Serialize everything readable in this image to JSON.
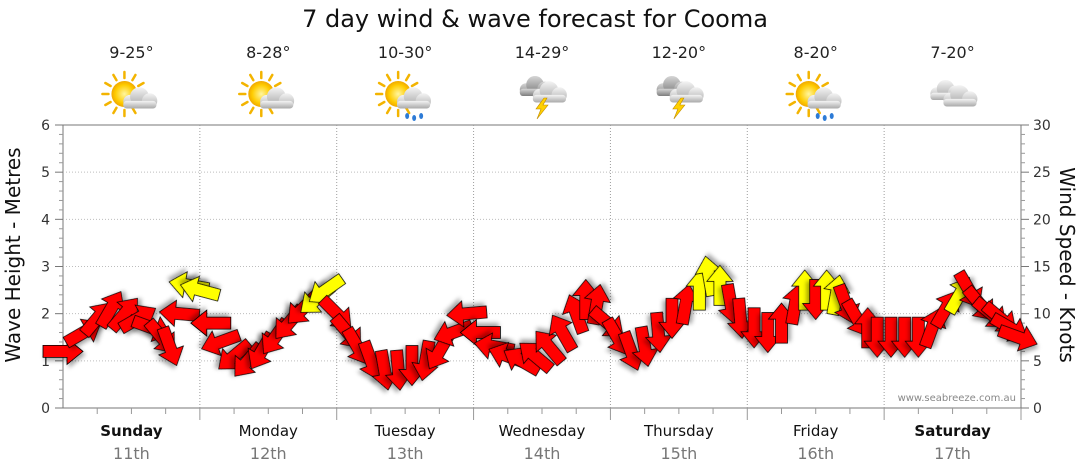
{
  "chart_data": {
    "type": "line",
    "title": "7 day wind & wave forecast for Cooma",
    "ylabel_left": "Wave Height - Metres",
    "ylabel_right": "Wind Speed - Knots",
    "ylim_left": [
      0,
      6
    ],
    "ylim_right": [
      0,
      30
    ],
    "yticks_left": [
      "0",
      "1",
      "2",
      "3",
      "4",
      "5",
      "6"
    ],
    "yticks_right": [
      "0",
      "5",
      "10",
      "15",
      "20",
      "25",
      "30"
    ],
    "grid": true,
    "credit": "www.seabreeze.com.au",
    "days": [
      {
        "name": "Sunday",
        "date": "11th",
        "temps": "9-25°",
        "weather": "partly-cloudy",
        "bold": true
      },
      {
        "name": "Monday",
        "date": "12th",
        "temps": "8-28°",
        "weather": "partly-cloudy",
        "bold": false
      },
      {
        "name": "Tuesday",
        "date": "13th",
        "temps": "10-30°",
        "weather": "shower",
        "bold": false
      },
      {
        "name": "Wednesday",
        "date": "14th",
        "temps": "14-29°",
        "weather": "storm",
        "bold": false
      },
      {
        "name": "Thursday",
        "date": "15th",
        "temps": "12-20°",
        "weather": "storm",
        "bold": false
      },
      {
        "name": "Friday",
        "date": "16th",
        "temps": "8-20°",
        "weather": "shower",
        "bold": false
      },
      {
        "name": "Saturday",
        "date": "17th",
        "temps": "7-20°",
        "weather": "cloudy",
        "bold": true
      }
    ],
    "series": [
      {
        "unit": "knots",
        "description_colors": {
          "strong": "#ff0000",
          "light": "#ffff00"
        },
        "points": [
          [
            0.0,
            6,
            90,
            "r"
          ],
          [
            0.15,
            8,
            60,
            "r"
          ],
          [
            0.25,
            9.5,
            40,
            "r"
          ],
          [
            0.35,
            10.5,
            30,
            "r"
          ],
          [
            0.45,
            10,
            40,
            "r"
          ],
          [
            0.55,
            9.5,
            60,
            "r"
          ],
          [
            0.65,
            8.5,
            110,
            "r"
          ],
          [
            0.72,
            7.5,
            140,
            "r"
          ],
          [
            0.78,
            6.5,
            160,
            "r"
          ],
          [
            0.85,
            10,
            275,
            "r"
          ],
          [
            0.92,
            13,
            280,
            "y"
          ],
          [
            1.0,
            12.5,
            285,
            "y"
          ],
          [
            1.08,
            9,
            270,
            "r"
          ],
          [
            1.15,
            7,
            250,
            "r"
          ],
          [
            1.25,
            5.5,
            230,
            "r"
          ],
          [
            1.35,
            5,
            220,
            "r"
          ],
          [
            1.45,
            6,
            210,
            "r"
          ],
          [
            1.55,
            7.5,
            215,
            "r"
          ],
          [
            1.65,
            9,
            220,
            "r"
          ],
          [
            1.75,
            10.5,
            225,
            "r"
          ],
          [
            1.85,
            11.5,
            230,
            "y"
          ],
          [
            1.92,
            12.5,
            235,
            "y"
          ],
          [
            2.0,
            10,
            135,
            "r"
          ],
          [
            2.08,
            8,
            140,
            "r"
          ],
          [
            2.15,
            6.5,
            150,
            "r"
          ],
          [
            2.25,
            5,
            160,
            "r"
          ],
          [
            2.35,
            4,
            170,
            "r"
          ],
          [
            2.45,
            4,
            175,
            "r"
          ],
          [
            2.55,
            4.5,
            180,
            "r"
          ],
          [
            2.65,
            5,
            190,
            "r"
          ],
          [
            2.75,
            6,
            210,
            "r"
          ],
          [
            2.85,
            8,
            250,
            "r"
          ],
          [
            2.95,
            10,
            265,
            "r"
          ],
          [
            3.05,
            8,
            270,
            "r"
          ],
          [
            3.15,
            6.5,
            280,
            "r"
          ],
          [
            3.25,
            5.5,
            290,
            "r"
          ],
          [
            3.35,
            5,
            300,
            "r"
          ],
          [
            3.45,
            5.5,
            310,
            "r"
          ],
          [
            3.55,
            6.5,
            320,
            "r"
          ],
          [
            3.65,
            8,
            330,
            "r"
          ],
          [
            3.75,
            10,
            340,
            "r"
          ],
          [
            3.82,
            11.5,
            0,
            "r"
          ],
          [
            3.9,
            11,
            10,
            "r"
          ],
          [
            3.98,
            9,
            130,
            "r"
          ],
          [
            4.05,
            7.5,
            150,
            "r"
          ],
          [
            4.15,
            6,
            160,
            "r"
          ],
          [
            4.25,
            6.5,
            170,
            "r"
          ],
          [
            4.35,
            8,
            175,
            "r"
          ],
          [
            4.45,
            9.5,
            180,
            "r"
          ],
          [
            4.55,
            11,
            10,
            "r"
          ],
          [
            4.65,
            12.5,
            0,
            "y"
          ],
          [
            4.72,
            14,
            350,
            "y"
          ],
          [
            4.8,
            13,
            0,
            "y"
          ],
          [
            4.88,
            11,
            170,
            "r"
          ],
          [
            4.95,
            9.5,
            175,
            "r"
          ],
          [
            5.05,
            8.5,
            180,
            "r"
          ],
          [
            5.15,
            8,
            180,
            "r"
          ],
          [
            5.25,
            9,
            0,
            "r"
          ],
          [
            5.35,
            11,
            10,
            "r"
          ],
          [
            5.42,
            12.5,
            0,
            "y"
          ],
          [
            5.5,
            11.5,
            180,
            "r"
          ],
          [
            5.58,
            12.5,
            0,
            "y"
          ],
          [
            5.65,
            12,
            10,
            "y"
          ],
          [
            5.72,
            11,
            160,
            "r"
          ],
          [
            5.8,
            9.5,
            150,
            "r"
          ],
          [
            5.88,
            8.5,
            0,
            "r"
          ],
          [
            5.95,
            7.5,
            180,
            "r"
          ],
          [
            6.05,
            7.5,
            180,
            "r"
          ],
          [
            6.15,
            7.5,
            180,
            "r"
          ],
          [
            6.25,
            7.5,
            180,
            "r"
          ],
          [
            6.35,
            8.5,
            20,
            "r"
          ],
          [
            6.45,
            10.5,
            30,
            "r"
          ],
          [
            6.55,
            12,
            30,
            "y"
          ],
          [
            6.62,
            12.5,
            150,
            "r"
          ],
          [
            6.7,
            11,
            140,
            "r"
          ],
          [
            6.78,
            10,
            130,
            "r"
          ],
          [
            6.85,
            9.5,
            130,
            "r"
          ],
          [
            6.92,
            8.5,
            120,
            "r"
          ],
          [
            6.98,
            7.5,
            110,
            "r"
          ]
        ]
      }
    ]
  }
}
